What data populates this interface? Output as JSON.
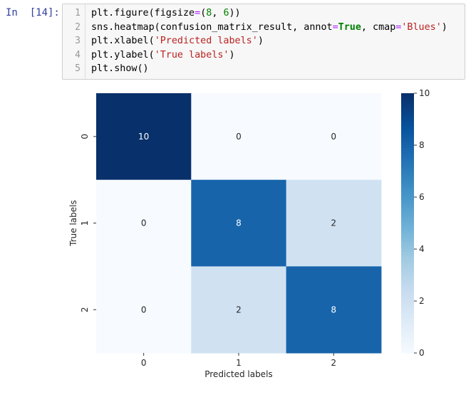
{
  "prompt": {
    "label": "In  [14]:"
  },
  "code": {
    "lines": [
      {
        "no": "1",
        "parts": [
          {
            "t": "plt.figure(figsize",
            "c": ""
          },
          {
            "t": "=",
            "c": "op"
          },
          {
            "t": "(",
            "c": ""
          },
          {
            "t": "8",
            "c": "num"
          },
          {
            "t": ", ",
            "c": ""
          },
          {
            "t": "6",
            "c": "num"
          },
          {
            "t": "))",
            "c": ""
          }
        ]
      },
      {
        "no": "2",
        "parts": [
          {
            "t": "sns.heatmap(confusion_matrix_result, annot",
            "c": ""
          },
          {
            "t": "=",
            "c": "op"
          },
          {
            "t": "True",
            "c": "kw"
          },
          {
            "t": ", cmap",
            "c": ""
          },
          {
            "t": "=",
            "c": "op"
          },
          {
            "t": "'Blues'",
            "c": "str"
          },
          {
            "t": ")",
            "c": ""
          }
        ]
      },
      {
        "no": "3",
        "parts": [
          {
            "t": "plt.xlabel(",
            "c": ""
          },
          {
            "t": "'Predicted labels'",
            "c": "str"
          },
          {
            "t": ")",
            "c": ""
          }
        ]
      },
      {
        "no": "4",
        "parts": [
          {
            "t": "plt.ylabel(",
            "c": ""
          },
          {
            "t": "'True labels'",
            "c": "str"
          },
          {
            "t": ")",
            "c": ""
          }
        ]
      },
      {
        "no": "5",
        "parts": [
          {
            "t": "plt.show()",
            "c": ""
          }
        ]
      }
    ]
  },
  "chart_data": {
    "type": "heatmap",
    "xlabel": "Predicted labels",
    "ylabel": "True labels",
    "x_categories": [
      "0",
      "1",
      "2"
    ],
    "y_categories": [
      "0",
      "1",
      "2"
    ],
    "matrix": [
      [
        10,
        0,
        0
      ],
      [
        0,
        8,
        2
      ],
      [
        0,
        2,
        8
      ]
    ],
    "colormap": "Blues",
    "colorbar": {
      "min": 0,
      "max": 10,
      "ticks": [
        "0",
        "2",
        "4",
        "6",
        "8",
        "10"
      ]
    },
    "colors": {
      "low": "#f7fbff",
      "high": "#08306b",
      "text_light": "#ffffff",
      "text_dark": "#262626"
    }
  }
}
